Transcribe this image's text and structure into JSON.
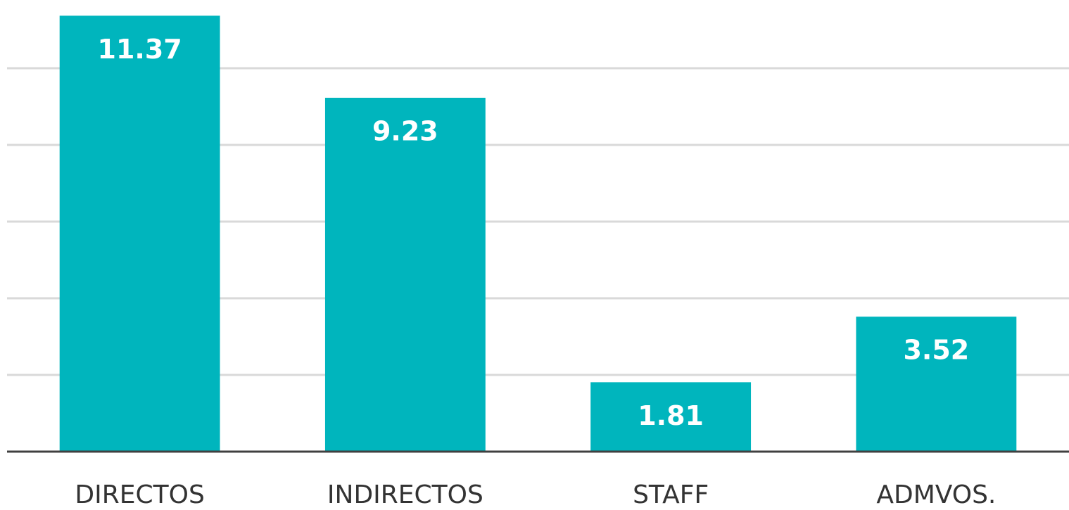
{
  "chart_data": {
    "type": "bar",
    "categories": [
      "DIRECTOS",
      "INDIRECTOS",
      "STAFF",
      "ADMVOS."
    ],
    "values": [
      11.37,
      9.23,
      1.81,
      3.52
    ],
    "color": "#00b5bd",
    "ylim": [
      0,
      12
    ],
    "yticks": [
      0,
      2,
      4,
      6,
      8,
      10
    ],
    "grid": true
  }
}
